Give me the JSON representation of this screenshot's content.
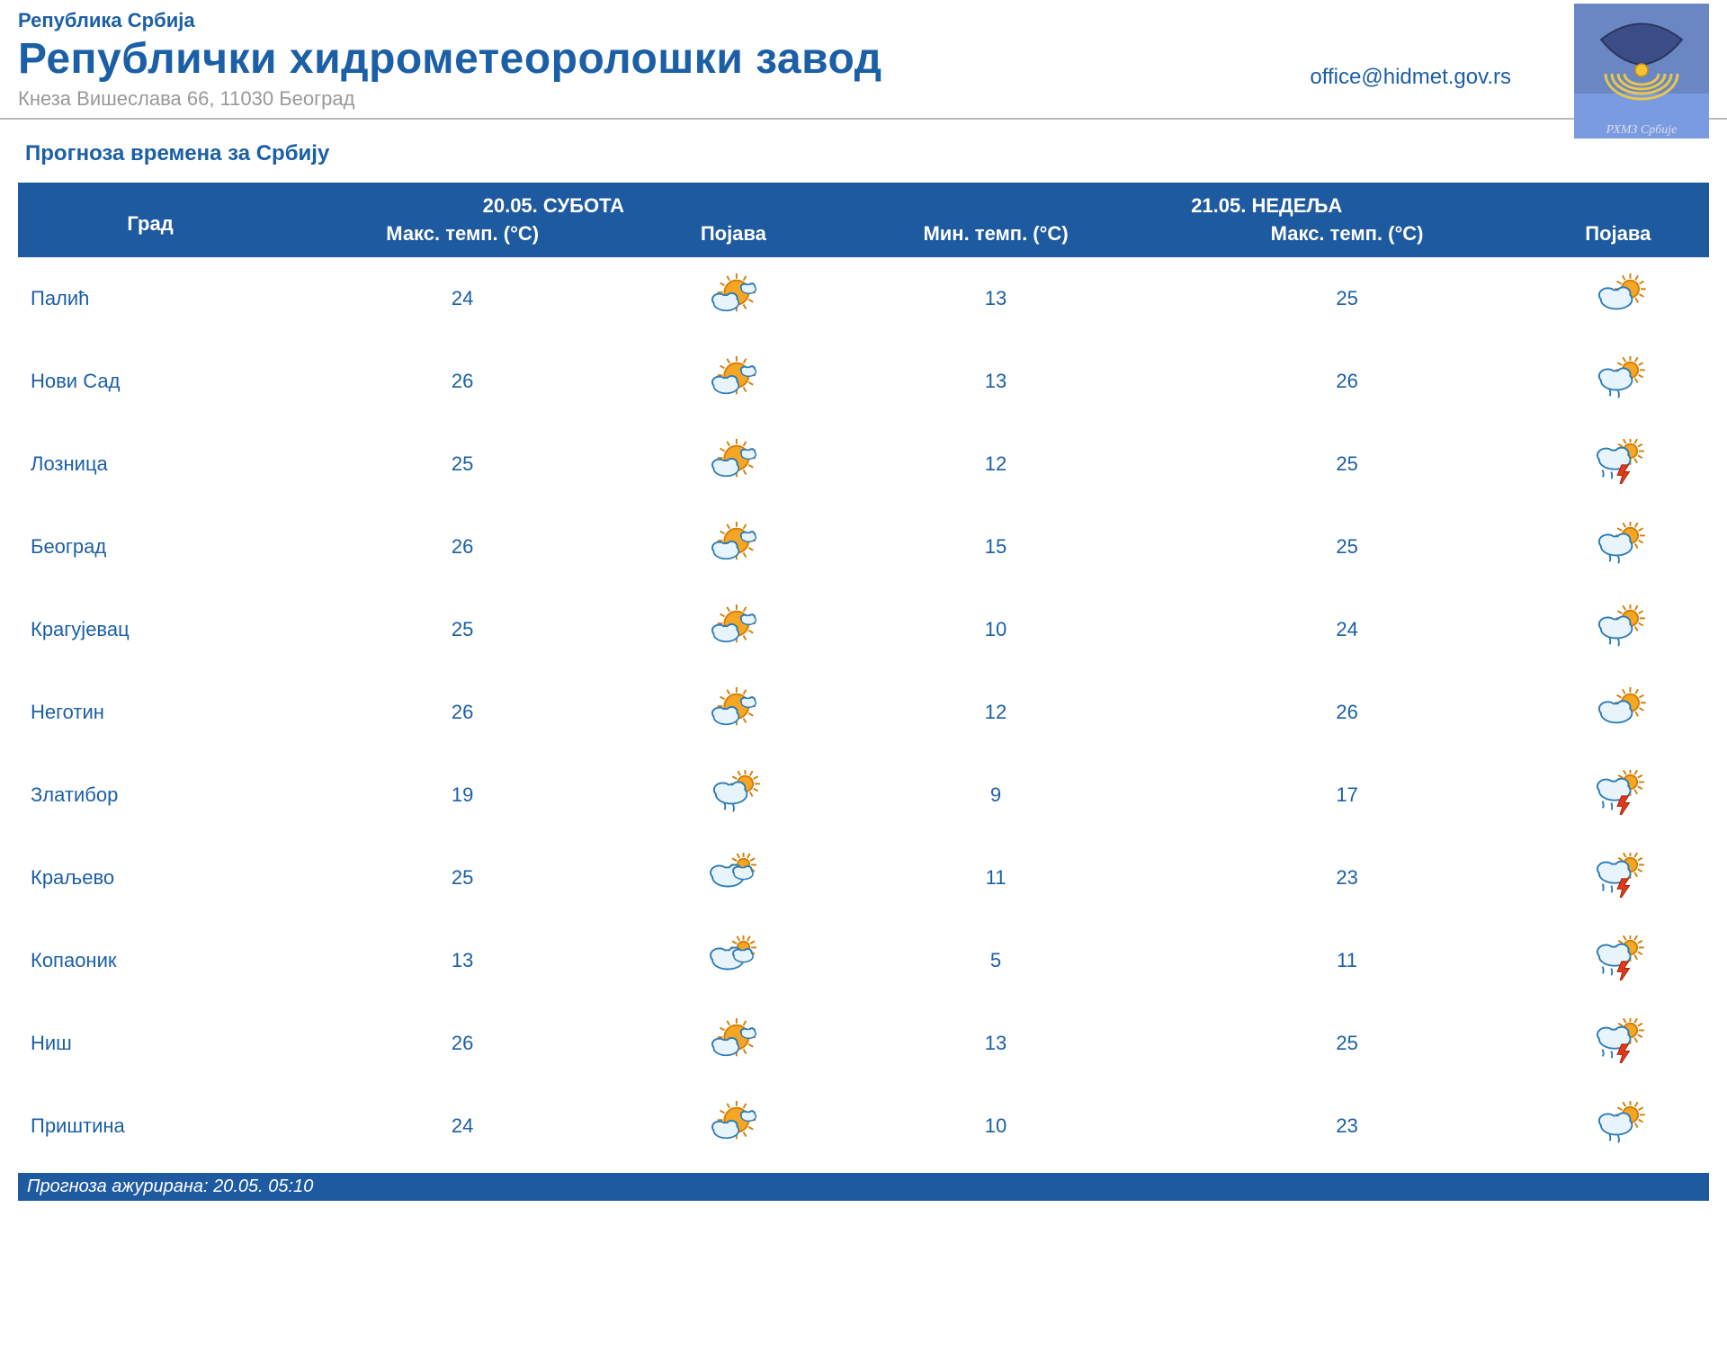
{
  "colors": {
    "brand_blue": "#1b5fa6",
    "header_bg": "#1e5aa0",
    "header_text": "#ffffff",
    "body_text": "#1b5fa6",
    "address_gray": "#999999",
    "rule_gray": "#bbbbbb",
    "cloud_fill": "#e8f4fb",
    "cloud_stroke": "#2a7bb8",
    "sun_fill": "#f6a623",
    "sun_stroke": "#d17f0a",
    "bolt": "#e03a1a"
  },
  "header": {
    "country": "Република Србија",
    "org": "Републички хидрометеоролошки завод",
    "address": "Кнеза Вишеслава 66, 11030 Београд",
    "email": "office@hidmet.gov.rs"
  },
  "title": "Прогноза времена за Србију",
  "table": {
    "city_label": "Град",
    "day1": "20.05. СУБОТА",
    "day2": "21.05. НЕДЕЉА",
    "max_label": "Макс. темп. (°C)",
    "min_label": "Мин. темп. (°C)",
    "phenom_label": "Појава"
  },
  "rows": [
    {
      "city": "Палић",
      "d1_max": "24",
      "d1_icon": "sunny-few-clouds",
      "d2_min": "13",
      "d2_max": "25",
      "d2_icon": "partly-cloudy"
    },
    {
      "city": "Нови Сад",
      "d1_max": "26",
      "d1_icon": "sunny-few-clouds",
      "d2_min": "13",
      "d2_max": "26",
      "d2_icon": "partly-cloudy-rain"
    },
    {
      "city": "Лозница",
      "d1_max": "25",
      "d1_icon": "sunny-few-clouds",
      "d2_min": "12",
      "d2_max": "25",
      "d2_icon": "thunderstorm"
    },
    {
      "city": "Београд",
      "d1_max": "26",
      "d1_icon": "sunny-few-clouds",
      "d2_min": "15",
      "d2_max": "25",
      "d2_icon": "partly-cloudy-rain"
    },
    {
      "city": "Крагујевац",
      "d1_max": "25",
      "d1_icon": "sunny-few-clouds",
      "d2_min": "10",
      "d2_max": "24",
      "d2_icon": "partly-cloudy-rain"
    },
    {
      "city": "Неготин",
      "d1_max": "26",
      "d1_icon": "sunny-few-clouds",
      "d2_min": "12",
      "d2_max": "26",
      "d2_icon": "partly-cloudy"
    },
    {
      "city": "Златибор",
      "d1_max": "19",
      "d1_icon": "partly-cloudy-rain",
      "d2_min": "9",
      "d2_max": "17",
      "d2_icon": "thunderstorm"
    },
    {
      "city": "Краљево",
      "d1_max": "25",
      "d1_icon": "mostly-cloudy-sun",
      "d2_min": "11",
      "d2_max": "23",
      "d2_icon": "thunderstorm"
    },
    {
      "city": "Копаоник",
      "d1_max": "13",
      "d1_icon": "mostly-cloudy-sun",
      "d2_min": "5",
      "d2_max": "11",
      "d2_icon": "thunderstorm"
    },
    {
      "city": "Ниш",
      "d1_max": "26",
      "d1_icon": "sunny-few-clouds",
      "d2_min": "13",
      "d2_max": "25",
      "d2_icon": "thunderstorm"
    },
    {
      "city": "Приштина",
      "d1_max": "24",
      "d1_icon": "sunny-few-clouds",
      "d2_min": "10",
      "d2_max": "23",
      "d2_icon": "partly-cloudy-rain"
    }
  ],
  "footer": "Прогноза ажурирана:  20.05. 05:10"
}
